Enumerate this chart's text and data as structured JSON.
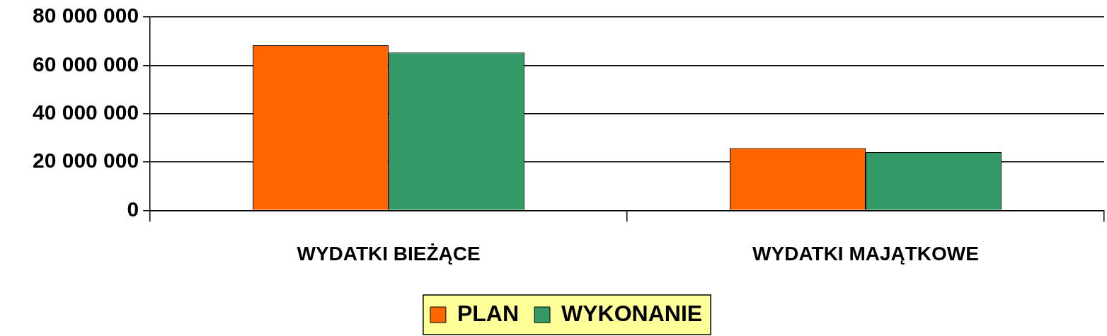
{
  "chart_data": {
    "type": "bar",
    "categories": [
      "WYDATKI BIEŻĄCE",
      "WYDATKI MAJĄTKOWE"
    ],
    "series": [
      {
        "name": "PLAN",
        "color": "#ff6600",
        "values": [
          68300000,
          25800000
        ]
      },
      {
        "name": "WYKONANIE",
        "color": "#339966",
        "values": [
          65300000,
          24100000
        ]
      }
    ],
    "ylim": [
      0,
      80000000
    ],
    "yticks": [
      {
        "value": 0,
        "label": "0"
      },
      {
        "value": 20000000,
        "label": "20 000 000"
      },
      {
        "value": 40000000,
        "label": "40 000 000"
      },
      {
        "value": 60000000,
        "label": "60 000 000"
      },
      {
        "value": 80000000,
        "label": "80 000 000"
      }
    ],
    "grid": "y",
    "legend": "bottom"
  }
}
